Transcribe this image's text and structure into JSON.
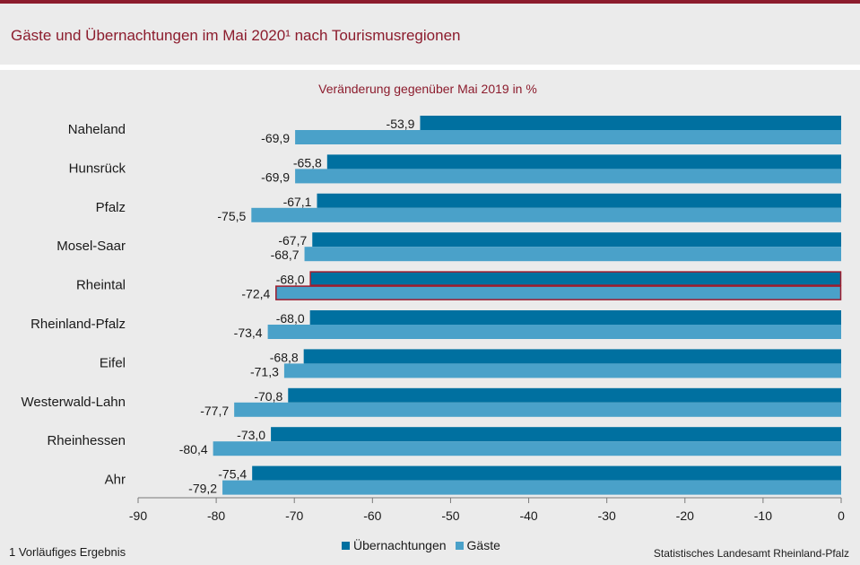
{
  "header": {
    "title": "Gäste und Übernachtungen im Mai 2020¹ nach Tourismusregionen"
  },
  "footnote": "1 Vorläufiges Ergebnis",
  "source": "Statistisches Landesamt Rheinland-Pfalz",
  "colors": {
    "brand": "#8c1c2d",
    "uebernachtungen": "#0070a0",
    "gaeste": "#4aa1c9",
    "highlight": "#a01c2d"
  },
  "chart_data": {
    "type": "bar",
    "orientation": "horizontal",
    "title": "Veränderung gegenüber Mai 2019 in %",
    "categories": [
      "Naheland",
      "Hunsrück",
      "Pfalz",
      "Mosel-Saar",
      "Rheintal",
      "Rheinland-Pfalz",
      "Eifel",
      "Westerwald-Lahn",
      "Rheinhessen",
      "Ahr"
    ],
    "series": [
      {
        "name": "Übernachtungen",
        "values": [
          -53.9,
          -65.8,
          -67.1,
          -67.7,
          -68.0,
          -68.0,
          -68.8,
          -70.8,
          -73.0,
          -75.4
        ],
        "labels": [
          "-53,9",
          "-65,8",
          "-67,1",
          "-67,7",
          "-68,0",
          "-68,0",
          "-68,8",
          "-70,8",
          "-73,0",
          "-75,4"
        ]
      },
      {
        "name": "Gäste",
        "values": [
          -69.9,
          -69.9,
          -75.5,
          -68.7,
          -72.4,
          -73.4,
          -71.3,
          -77.7,
          -80.4,
          -79.2
        ],
        "labels": [
          "-69,9",
          "-69,9",
          "-75,5",
          "-68,7",
          "-72,4",
          "-73,4",
          "-71,3",
          "-77,7",
          "-80,4",
          "-79,2"
        ]
      }
    ],
    "xlim": [
      -90,
      0
    ],
    "xticks": [
      -90,
      -80,
      -70,
      -60,
      -50,
      -40,
      -30,
      -20,
      -10,
      0
    ],
    "xtick_labels": [
      "-90",
      "-80",
      "-70",
      "-60",
      "-50",
      "-40",
      "-30",
      "-20",
      "-10",
      "0"
    ],
    "highlight_category": "Rheintal",
    "legend_position": "bottom-center"
  }
}
